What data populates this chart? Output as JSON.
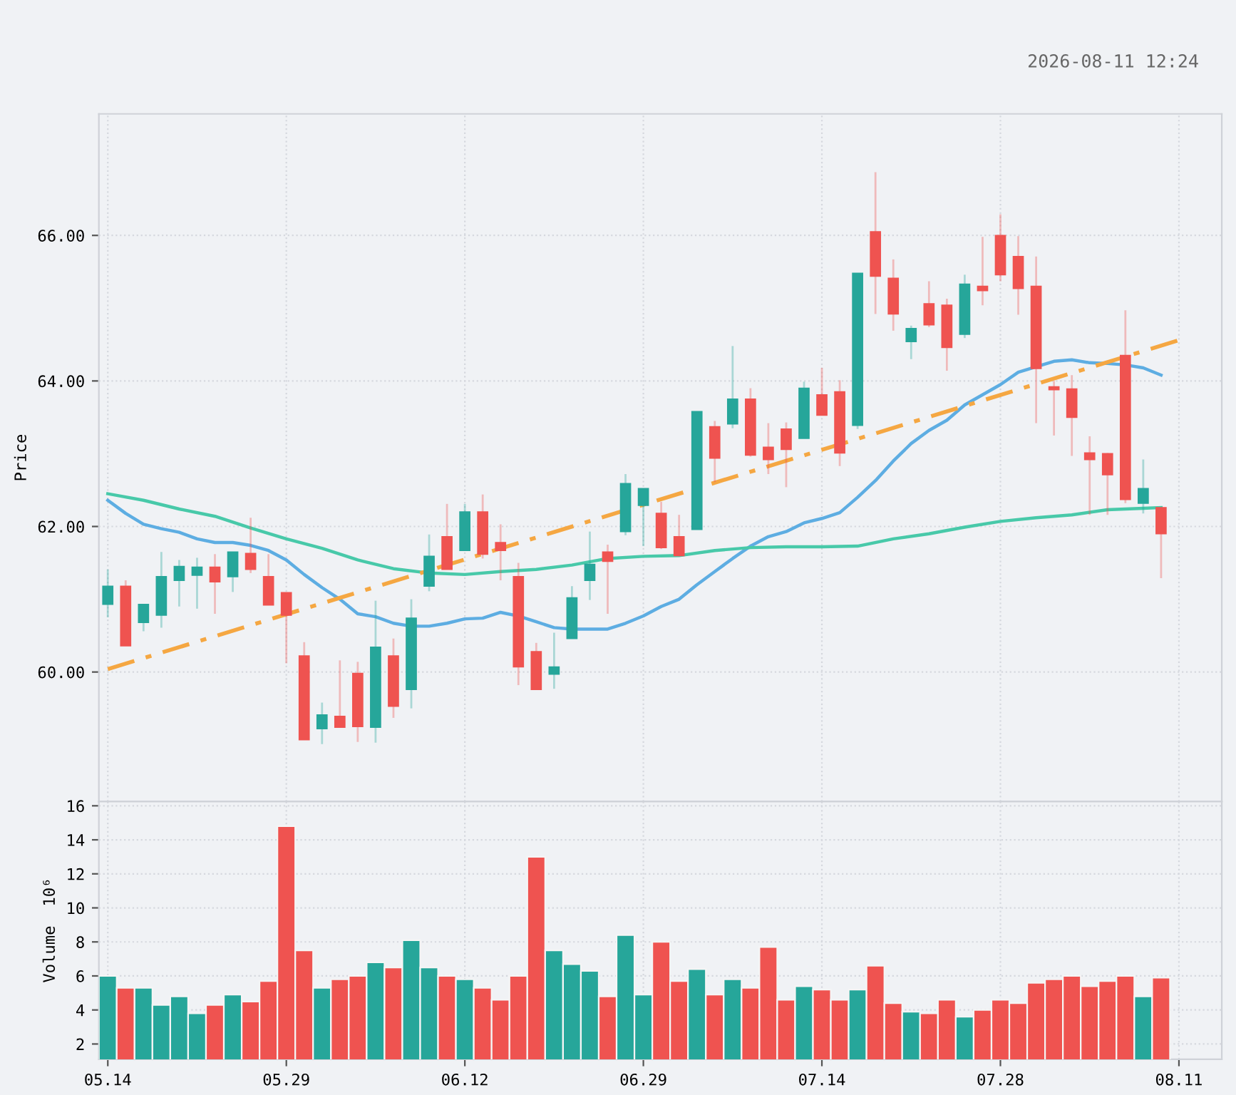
{
  "chart_data": [
    {
      "type": "candlestick",
      "ylabel": "Price",
      "annotations": [
        "2026-08-11 12:24"
      ],
      "categories": [
        "05.14",
        null,
        null,
        null,
        null,
        null,
        null,
        null,
        null,
        null,
        "05.29",
        null,
        null,
        null,
        null,
        null,
        null,
        null,
        null,
        null,
        "06.12",
        null,
        null,
        null,
        null,
        null,
        null,
        null,
        null,
        null,
        "06.29",
        null,
        null,
        null,
        null,
        null,
        null,
        null,
        null,
        null,
        "07.14",
        null,
        null,
        null,
        null,
        null,
        null,
        null,
        null,
        null,
        "07.28",
        null,
        null,
        null,
        null,
        null,
        null,
        null,
        null,
        null,
        "08.11"
      ],
      "ohlc": [
        [
          60.93,
          61.41,
          60.75,
          61.18
        ],
        [
          61.18,
          61.26,
          60.36,
          60.36
        ],
        [
          60.68,
          60.93,
          60.56,
          60.93
        ],
        [
          60.78,
          61.65,
          60.61,
          61.31
        ],
        [
          61.26,
          61.54,
          60.9,
          61.45
        ],
        [
          61.33,
          61.57,
          60.87,
          61.44
        ],
        [
          61.44,
          61.62,
          60.8,
          61.24
        ],
        [
          61.31,
          61.65,
          61.1,
          61.65
        ],
        [
          61.63,
          62.12,
          61.36,
          61.41
        ],
        [
          61.31,
          61.62,
          60.92,
          60.92
        ],
        [
          61.09,
          61.09,
          60.12,
          60.78
        ],
        [
          60.22,
          60.41,
          59.07,
          59.07
        ],
        [
          59.22,
          59.58,
          59.01,
          59.41
        ],
        [
          59.39,
          60.16,
          59.24,
          59.24
        ],
        [
          59.98,
          60.14,
          59.04,
          59.25
        ],
        [
          59.24,
          60.98,
          59.03,
          60.34
        ],
        [
          60.22,
          60.46,
          59.37,
          59.53
        ],
        [
          59.76,
          61.0,
          59.5,
          60.74
        ],
        [
          61.18,
          61.89,
          61.11,
          61.59
        ],
        [
          61.86,
          62.31,
          61.41,
          61.41
        ],
        [
          61.67,
          62.31,
          61.67,
          62.2
        ],
        [
          62.2,
          62.44,
          61.56,
          61.62
        ],
        [
          61.78,
          62.03,
          61.26,
          61.67
        ],
        [
          61.31,
          61.5,
          59.82,
          60.07
        ],
        [
          60.28,
          60.4,
          59.76,
          59.76
        ],
        [
          59.97,
          60.54,
          59.77,
          60.07
        ],
        [
          60.46,
          61.18,
          60.46,
          61.02
        ],
        [
          61.26,
          61.93,
          60.99,
          61.48
        ],
        [
          61.65,
          61.75,
          60.8,
          61.52
        ],
        [
          61.93,
          62.72,
          61.88,
          62.59
        ],
        [
          62.29,
          62.52,
          61.73,
          62.52
        ],
        [
          62.18,
          62.34,
          61.69,
          61.71
        ],
        [
          61.86,
          62.16,
          61.59,
          61.6
        ],
        [
          61.96,
          63.58,
          61.96,
          63.58
        ],
        [
          63.37,
          63.45,
          62.61,
          62.94
        ],
        [
          63.41,
          64.48,
          63.35,
          63.75
        ],
        [
          63.75,
          63.9,
          62.96,
          62.98
        ],
        [
          63.09,
          63.42,
          62.72,
          62.92
        ],
        [
          63.34,
          63.43,
          62.54,
          63.06
        ],
        [
          63.21,
          63.99,
          63.21,
          63.9
        ],
        [
          63.81,
          64.18,
          63.53,
          63.53
        ],
        [
          63.85,
          64.01,
          62.83,
          63.01
        ],
        [
          63.39,
          65.48,
          63.34,
          65.48
        ],
        [
          66.05,
          66.87,
          64.92,
          65.44
        ],
        [
          65.41,
          65.67,
          64.69,
          64.92
        ],
        [
          64.54,
          64.76,
          64.3,
          64.72
        ],
        [
          65.06,
          65.37,
          64.74,
          64.77
        ],
        [
          65.04,
          65.13,
          64.14,
          64.46
        ],
        [
          64.64,
          65.46,
          64.59,
          65.33
        ],
        [
          65.3,
          65.98,
          65.04,
          65.24
        ],
        [
          66.0,
          66.29,
          65.37,
          65.46
        ],
        [
          65.71,
          65.99,
          64.91,
          65.27
        ],
        [
          65.3,
          65.71,
          63.42,
          64.17
        ],
        [
          63.92,
          64.0,
          63.25,
          63.88
        ],
        [
          63.89,
          64.08,
          62.97,
          63.5
        ],
        [
          63.01,
          63.24,
          62.16,
          62.92
        ],
        [
          63.0,
          63.01,
          62.16,
          62.71
        ],
        [
          64.35,
          64.97,
          62.32,
          62.37
        ],
        [
          62.32,
          62.92,
          62.18,
          62.52
        ],
        [
          62.26,
          62.26,
          61.29,
          61.9
        ],
        null
      ],
      "colors": [
        "#26a69a",
        "#ef5350",
        "#26a69a",
        "#26a69a",
        "#26a69a",
        "#26a69a",
        "#ef5350",
        "#26a69a",
        "#ef5350",
        "#ef5350",
        "#ef5350",
        "#ef5350",
        "#26a69a",
        "#ef5350",
        "#ef5350",
        "#26a69a",
        "#ef5350",
        "#26a69a",
        "#26a69a",
        "#ef5350",
        "#26a69a",
        "#ef5350",
        "#ef5350",
        "#ef5350",
        "#ef5350",
        "#26a69a",
        "#26a69a",
        "#26a69a",
        "#ef5350",
        "#26a69a",
        "#26a69a",
        "#ef5350",
        "#ef5350",
        "#26a69a",
        "#ef5350",
        "#26a69a",
        "#ef5350",
        "#ef5350",
        "#ef5350",
        "#26a69a",
        "#ef5350",
        "#ef5350",
        "#26a69a",
        "#ef5350",
        "#ef5350",
        "#26a69a",
        "#ef5350",
        "#ef5350",
        "#26a69a",
        "#ef5350",
        "#ef5350",
        "#ef5350",
        "#ef5350",
        "#ef5350",
        "#ef5350",
        "#ef5350",
        "#ef5350",
        "#ef5350",
        "#26a69a",
        "#ef5350",
        null
      ],
      "series": [
        {
          "type": "line",
          "color": "#5dade2",
          "values": [
            62.36,
            62.18,
            62.03,
            61.97,
            61.92,
            61.83,
            61.78,
            61.78,
            61.74,
            61.67,
            61.54,
            61.34,
            61.16,
            61.0,
            60.8,
            60.76,
            60.67,
            60.63,
            60.63,
            60.67,
            60.73,
            60.74,
            60.82,
            60.77,
            60.69,
            60.61,
            60.59,
            60.59,
            60.59,
            60.67,
            60.77,
            60.9,
            61.0,
            61.2,
            61.38,
            61.56,
            61.73,
            61.86,
            61.93,
            62.05,
            62.11,
            62.19,
            62.4,
            62.63,
            62.9,
            63.14,
            63.32,
            63.46,
            63.67,
            63.81,
            63.95,
            64.12,
            null,
            64.27,
            64.29,
            64.25,
            64.24,
            64.22,
            64.18,
            64.08,
            null
          ]
        },
        {
          "type": "line",
          "color": "#48c9a9",
          "values": [
            62.45,
            null,
            62.36,
            null,
            62.24,
            null,
            62.14,
            null,
            61.98,
            null,
            61.83,
            null,
            61.7,
            null,
            61.54,
            null,
            61.42,
            null,
            61.36,
            null,
            61.34,
            null,
            61.38,
            null,
            61.41,
            null,
            61.47,
            null,
            61.56,
            null,
            61.59,
            null,
            61.6,
            null,
            61.67,
            null,
            61.71,
            null,
            61.72,
            null,
            61.72,
            null,
            61.73,
            null,
            61.83,
            null,
            61.9,
            null,
            61.99,
            null,
            62.07,
            null,
            62.12,
            null,
            62.16,
            null,
            62.23,
            null,
            62.25,
            62.26,
            null
          ]
        },
        {
          "type": "line",
          "color": "#f5a742",
          "line_style": "dashed",
          "values": [
            60.04,
            null,
            null,
            null,
            null,
            null,
            null,
            null,
            null,
            null,
            null,
            null,
            null,
            null,
            null,
            null,
            null,
            null,
            null,
            null,
            null,
            null,
            null,
            null,
            null,
            null,
            null,
            null,
            null,
            null,
            null,
            null,
            null,
            null,
            null,
            null,
            null,
            null,
            null,
            null,
            null,
            null,
            null,
            null,
            null,
            null,
            null,
            null,
            null,
            null,
            null,
            null,
            null,
            null,
            null,
            null,
            null,
            null,
            null,
            null,
            64.56
          ]
        }
      ],
      "ylim": [
        58.22,
        67.67
      ],
      "yticks": [
        {
          "value": 60,
          "label": "60.00"
        },
        {
          "value": 62,
          "label": "62.00"
        },
        {
          "value": 64,
          "label": "64.00"
        },
        {
          "value": 66,
          "label": "66.00"
        }
      ],
      "tick_labels": "y",
      "grid": true
    },
    {
      "type": "bar",
      "ylabel": "Volume  10⁶",
      "categories": [
        "05.14",
        null,
        null,
        null,
        null,
        null,
        null,
        null,
        null,
        null,
        "05.29",
        null,
        null,
        null,
        null,
        null,
        null,
        null,
        null,
        null,
        "06.12",
        null,
        null,
        null,
        null,
        null,
        null,
        null,
        null,
        null,
        "06.29",
        null,
        null,
        null,
        null,
        null,
        null,
        null,
        null,
        null,
        "07.14",
        null,
        null,
        null,
        null,
        null,
        null,
        null,
        null,
        null,
        "07.28",
        null,
        null,
        null,
        null,
        null,
        null,
        null,
        null,
        null,
        "08.11"
      ],
      "values": [
        6.0,
        5.3,
        5.3,
        4.3,
        4.8,
        3.8,
        4.3,
        4.9,
        4.5,
        5.7,
        14.8,
        7.5,
        5.3,
        5.8,
        6.0,
        6.8,
        6.5,
        8.1,
        6.5,
        6.0,
        5.8,
        5.3,
        4.6,
        6.0,
        13.0,
        7.5,
        6.7,
        6.3,
        4.8,
        8.4,
        4.9,
        8.0,
        5.7,
        6.4,
        4.9,
        5.8,
        5.3,
        7.7,
        4.6,
        5.4,
        5.2,
        4.6,
        5.2,
        6.6,
        4.4,
        3.9,
        3.8,
        4.6,
        3.6,
        4.0,
        4.6,
        4.4,
        5.6,
        5.8,
        6.0,
        5.4,
        5.7,
        6.0,
        4.8,
        5.9,
        null
      ],
      "colors": [
        "#26a69a",
        "#ef5350",
        "#26a69a",
        "#26a69a",
        "#26a69a",
        "#26a69a",
        "#ef5350",
        "#26a69a",
        "#ef5350",
        "#ef5350",
        "#ef5350",
        "#ef5350",
        "#26a69a",
        "#ef5350",
        "#ef5350",
        "#26a69a",
        "#ef5350",
        "#26a69a",
        "#26a69a",
        "#ef5350",
        "#26a69a",
        "#ef5350",
        "#ef5350",
        "#ef5350",
        "#ef5350",
        "#26a69a",
        "#26a69a",
        "#26a69a",
        "#ef5350",
        "#26a69a",
        "#26a69a",
        "#ef5350",
        "#ef5350",
        "#26a69a",
        "#ef5350",
        "#26a69a",
        "#ef5350",
        "#ef5350",
        "#ef5350",
        "#26a69a",
        "#ef5350",
        "#ef5350",
        "#26a69a",
        "#ef5350",
        "#ef5350",
        "#26a69a",
        "#ef5350",
        "#ef5350",
        "#26a69a",
        "#ef5350",
        "#ef5350",
        "#ef5350",
        "#ef5350",
        "#ef5350",
        "#ef5350",
        "#ef5350",
        "#ef5350",
        "#ef5350",
        "#26a69a",
        "#ef5350",
        null
      ],
      "ylim": [
        1.1,
        16.25
      ],
      "yticks": [
        2,
        4,
        6,
        8,
        10,
        12,
        14,
        16
      ],
      "grid": true
    }
  ]
}
